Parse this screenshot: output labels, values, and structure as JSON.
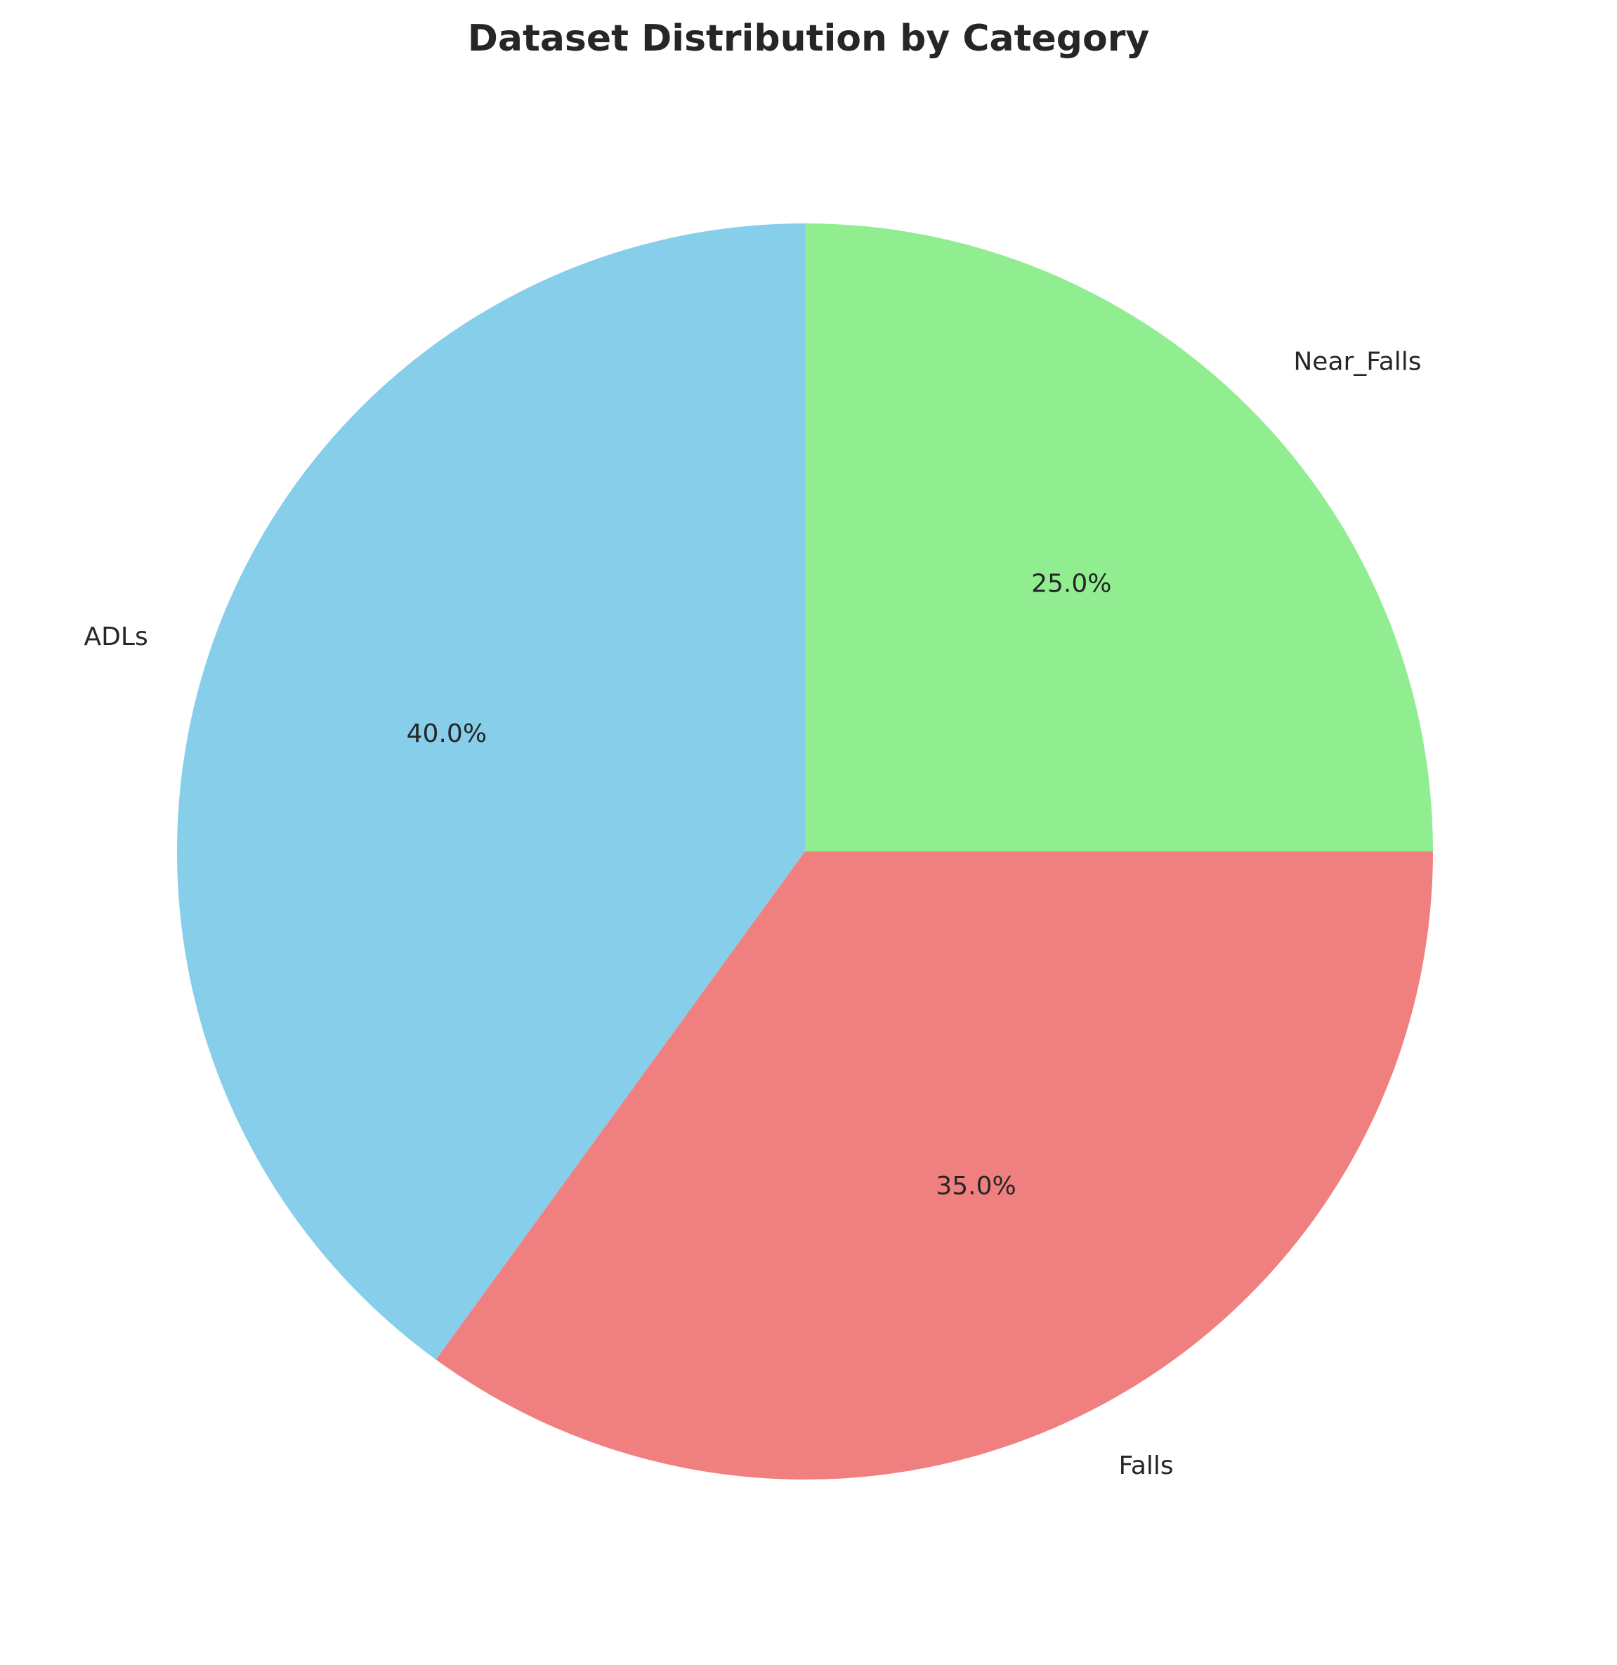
{
  "chart_data": {
    "type": "pie",
    "title": "Dataset Distribution by Category",
    "categories": [
      "ADLs",
      "Falls",
      "Near_Falls"
    ],
    "values": [
      40.0,
      35.0,
      25.0
    ],
    "value_labels": [
      "40.0%",
      "35.0%",
      "25.0%"
    ],
    "colors": [
      "#87CEEB",
      "#F08080",
      "#90EE90"
    ],
    "start_angle_deg": 90,
    "direction": "counterclockwise",
    "legend": "none"
  }
}
